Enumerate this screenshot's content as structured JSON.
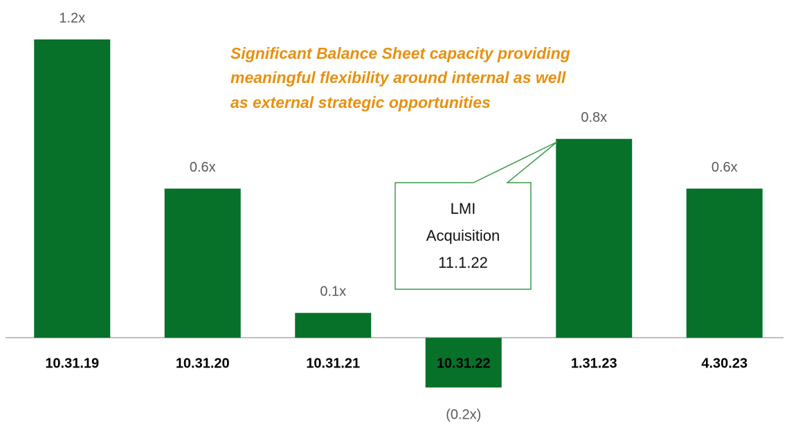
{
  "chart_data": {
    "type": "bar",
    "annotation": [
      "Significant Balance Sheet capacity providing",
      "meaningful flexibility around internal as well",
      "as external strategic opportunities"
    ],
    "callout": [
      "LMI",
      "Acquisition",
      "11.1.22"
    ],
    "categories": [
      "10.31.19",
      "10.31.20",
      "10.31.21",
      "10.31.22",
      "1.31.23",
      "4.30.23"
    ],
    "values": [
      1.2,
      0.6,
      0.1,
      -0.2,
      0.8,
      0.6
    ],
    "value_labels": [
      "1.2x",
      "0.6x",
      "0.1x",
      "(0.2x)",
      "0.8x",
      "0.6x"
    ],
    "color": "#07712a",
    "ylim": [
      -0.2,
      1.2
    ]
  }
}
